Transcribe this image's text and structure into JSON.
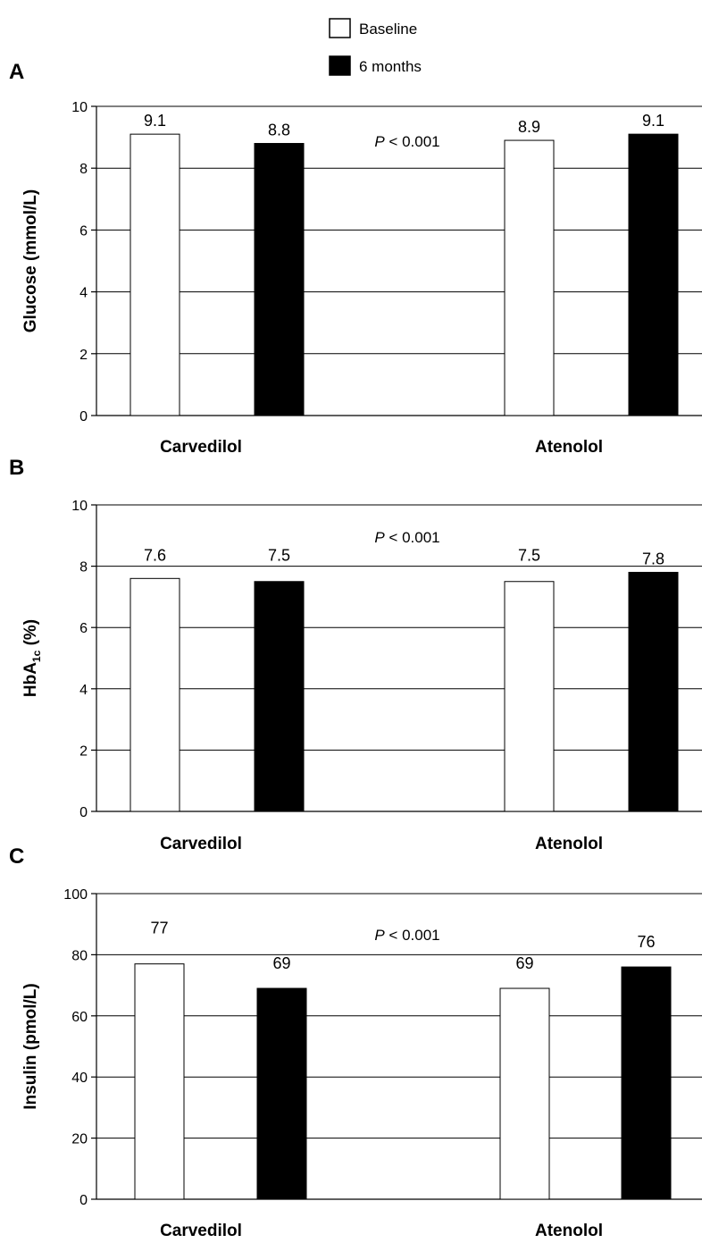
{
  "legend": [
    {
      "label": "Baseline",
      "color": "#ffffff"
    },
    {
      "label": "6 months",
      "color": "#000000"
    }
  ],
  "chart_data": [
    {
      "type": "bar",
      "panel": "A",
      "ylabel": "Glucose (mmol/L)",
      "ylim": [
        0,
        10
      ],
      "yticks": [
        0,
        2,
        4,
        6,
        8,
        10
      ],
      "categories": [
        "Carvedilol",
        "Atenolol"
      ],
      "series": [
        {
          "name": "Baseline",
          "values": [
            9.1,
            8.9
          ],
          "labels": [
            "9.1",
            "8.9"
          ]
        },
        {
          "name": "6 months",
          "values": [
            8.8,
            9.1
          ],
          "labels": [
            "8.8",
            "9.1"
          ]
        }
      ],
      "annotation": {
        "p_italic": "P",
        "p_rest": " < 0.001"
      },
      "grid": true
    },
    {
      "type": "bar",
      "panel": "B",
      "ylabel_main": "HbA",
      "ylabel_sub": "1c",
      "ylabel_rest": " (%)",
      "ylim": [
        0,
        10
      ],
      "yticks": [
        0,
        2,
        4,
        6,
        8,
        10
      ],
      "categories": [
        "Carvedilol",
        "Atenolol"
      ],
      "series": [
        {
          "name": "Baseline",
          "values": [
            7.6,
            7.5
          ],
          "labels": [
            "7.6",
            "7.5"
          ]
        },
        {
          "name": "6 months",
          "values": [
            7.5,
            7.8
          ],
          "labels": [
            "7.5",
            "7.8"
          ]
        }
      ],
      "annotation": {
        "p_italic": "P",
        "p_rest": " < 0.001"
      },
      "grid": true
    },
    {
      "type": "bar",
      "panel": "C",
      "ylabel": "Insulin (pmol/L)",
      "ylim": [
        0,
        100
      ],
      "yticks": [
        0,
        20,
        40,
        60,
        80,
        100
      ],
      "categories": [
        "Carvedilol",
        "Atenolol"
      ],
      "series": [
        {
          "name": "Baseline",
          "values": [
            77,
            69
          ],
          "labels": [
            "77",
            "69"
          ]
        },
        {
          "name": "6 months",
          "values": [
            69,
            76
          ],
          "labels": [
            "69",
            "76"
          ]
        }
      ],
      "annotation": {
        "p_italic": "P",
        "p_rest": " < 0.001"
      },
      "grid": true
    }
  ]
}
